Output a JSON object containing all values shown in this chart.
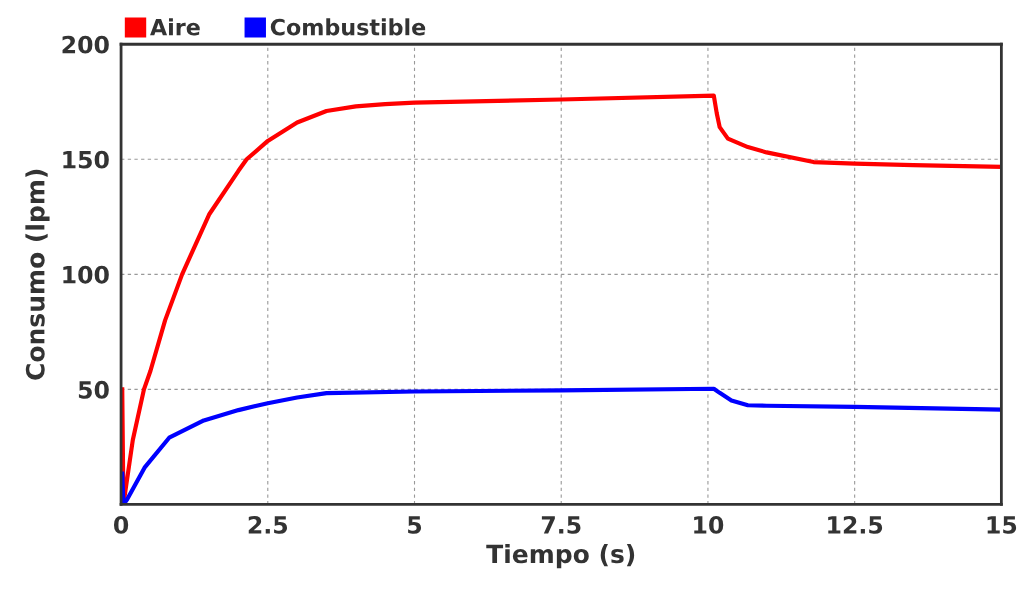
{
  "chart_data": {
    "type": "line",
    "xlabel": "Tiempo (s)",
    "ylabel": "Consumo (lpm)",
    "xlim": [
      0,
      15
    ],
    "ylim": [
      0,
      200
    ],
    "xticks": [
      0,
      2.5,
      5,
      7.5,
      10,
      12.5,
      15
    ],
    "yticks": [
      50,
      100,
      150,
      200
    ],
    "grid": true,
    "legend": "top left",
    "line_style": "solid",
    "marker": "none",
    "series": [
      {
        "name": "Aire",
        "color": "#ff0000",
        "x": [
          0.02,
          0.04,
          0.2,
          0.39,
          0.5,
          0.75,
          1.04,
          1.5,
          2.0,
          2.14,
          2.5,
          3.0,
          3.5,
          4.0,
          4.5,
          5.0,
          7.5,
          10.1,
          10.15,
          10.2,
          10.34,
          10.68,
          11.0,
          11.8,
          12.5,
          13.5,
          15.0
        ],
        "values": [
          50,
          0,
          28,
          50,
          58,
          80,
          100,
          126,
          145,
          150,
          158,
          166,
          171,
          173,
          174,
          174.6,
          176,
          177.7,
          170,
          164,
          159,
          155.3,
          153,
          148.8,
          148.1,
          147.5,
          146.7
        ]
      },
      {
        "name": "Combustible",
        "color": "#0000ff",
        "x": [
          0.02,
          0.04,
          0.1,
          0.4,
          0.82,
          1.41,
          2.0,
          2.5,
          3.0,
          3.5,
          5.0,
          7.5,
          10.1,
          10.2,
          10.4,
          10.68,
          11.0,
          12.5,
          15.0
        ],
        "values": [
          13.4,
          0,
          2,
          16,
          29,
          36.5,
          41,
          44,
          46.5,
          48.4,
          49.1,
          49.6,
          50.3,
          48.5,
          45.2,
          43.1,
          42.9,
          42.4,
          41.2
        ]
      }
    ]
  }
}
